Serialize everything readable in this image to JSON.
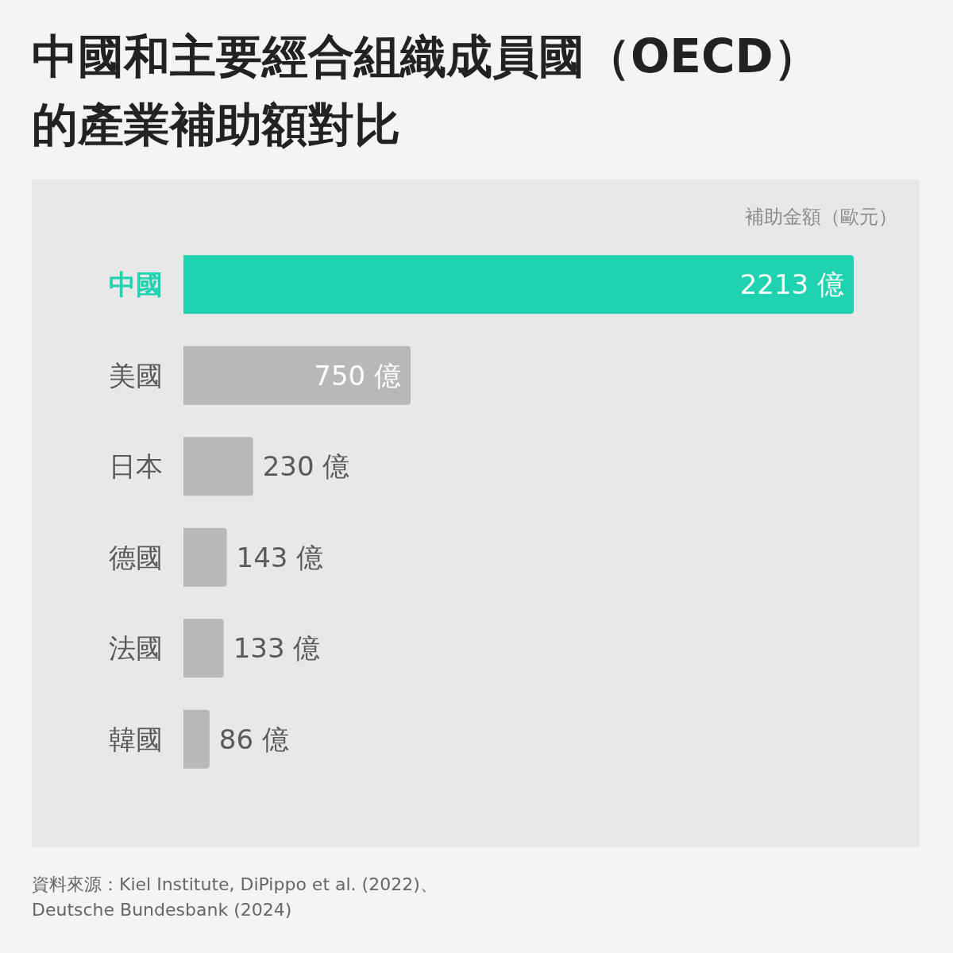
{
  "chart_data": {
    "type": "bar",
    "orientation": "horizontal",
    "title": "中國和主要經合組織成員國（OECD）的產業補助額對比",
    "xlabel": "補助金額（歐元）",
    "categories": [
      "中國",
      "美國",
      "日本",
      "德國",
      "法國",
      "韓國"
    ],
    "values": [
      2213,
      750,
      230,
      143,
      133,
      86
    ],
    "colors": [
      "#1fd3b1",
      "#b8b8b8",
      "#b8b8b8",
      "#b8b8b8",
      "#b8b8b8",
      "#b8b8b8"
    ],
    "value_labels": [
      "2213 億",
      "750 億",
      "230 億",
      "143 億",
      "133 億",
      "86 億"
    ],
    "annotations": [
      "資料來源：Kiel Institute, DiPippo et al. (2022)、Deutsche Bundesbank (2024)"
    ]
  }
}
